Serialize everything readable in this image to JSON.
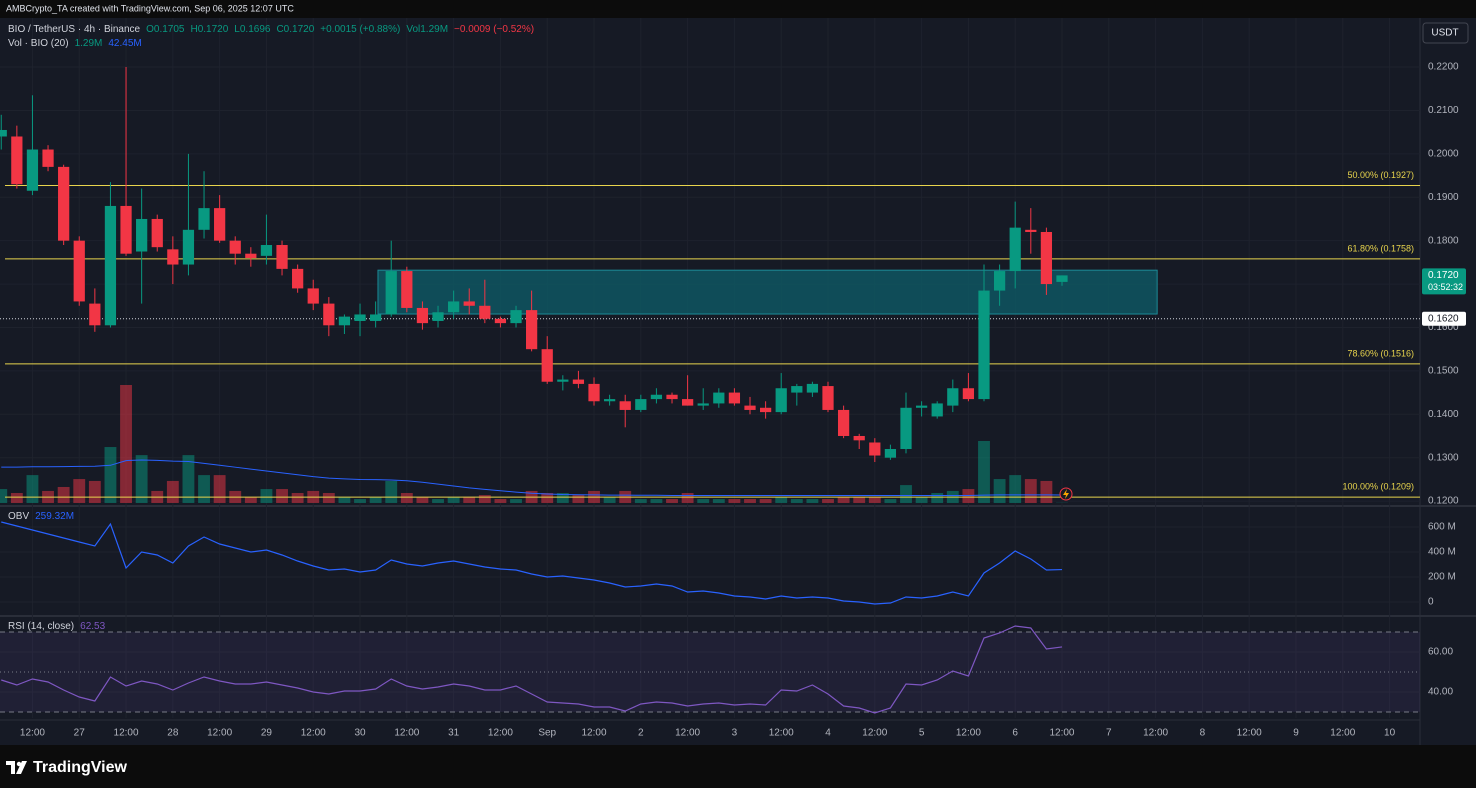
{
  "header": {
    "attribution": "AMBCrypto_TA created with TradingView.com, Sep 06, 2025 12:07 UTC",
    "symbol": "BIO / TetherUS · 4h · Binance",
    "ohlc": [
      "O0.1705",
      "H0.1720",
      "L0.1696",
      "C0.1720",
      "+0.0015 (+0.88%)"
    ],
    "vol_text": "Vol1.29M",
    "vol_change": "−0.0009 (−0.52%)",
    "currency": "USDT"
  },
  "footer": {
    "brand": "TradingView"
  },
  "chart_data": [
    {
      "type": "candlestick",
      "up_color": "#089981",
      "down_color": "#f23645",
      "grid": true,
      "ylim": [
        0.1191,
        0.2313
      ],
      "yticks": [
        {
          "value": 0.22,
          "label": "0.2200"
        },
        {
          "value": 0.21,
          "label": "0.2100"
        },
        {
          "value": 0.2,
          "label": "0.2000"
        },
        {
          "value": 0.19,
          "label": "0.1900"
        },
        {
          "value": 0.18,
          "label": "0.1800"
        },
        {
          "value": 0.17,
          "label": "0.1700"
        },
        {
          "value": 0.16,
          "label": "0.1600"
        },
        {
          "value": 0.15,
          "label": "0.1500"
        },
        {
          "value": 0.14,
          "label": "0.1400"
        },
        {
          "value": 0.13,
          "label": "0.1300"
        },
        {
          "value": 0.12,
          "label": "0.1200"
        }
      ],
      "xlim": [
        -0.08,
        90.95
      ],
      "xticks": [
        {
          "value": 2,
          "label": "12:00"
        },
        {
          "value": 5,
          "label": "27"
        },
        {
          "value": 8,
          "label": "12:00"
        },
        {
          "value": 11,
          "label": "28"
        },
        {
          "value": 14,
          "label": "12:00"
        },
        {
          "value": 17,
          "label": "29"
        },
        {
          "value": 20,
          "label": "12:00"
        },
        {
          "value": 23,
          "label": "30"
        },
        {
          "value": 26,
          "label": "12:00"
        },
        {
          "value": 29,
          "label": "31"
        },
        {
          "value": 32,
          "label": "12:00"
        },
        {
          "value": 35,
          "label": "Sep"
        },
        {
          "value": 38,
          "label": "12:00"
        },
        {
          "value": 41,
          "label": "2"
        },
        {
          "value": 44,
          "label": "12:00"
        },
        {
          "value": 47,
          "label": "3"
        },
        {
          "value": 50,
          "label": "12:00"
        },
        {
          "value": 53,
          "label": "4"
        },
        {
          "value": 56,
          "label": "12:00"
        },
        {
          "value": 59,
          "label": "5"
        },
        {
          "value": 62,
          "label": "12:00"
        },
        {
          "value": 65,
          "label": "6"
        },
        {
          "value": 68,
          "label": "12:00"
        },
        {
          "value": 71,
          "label": "7"
        },
        {
          "value": 74,
          "label": "12:00"
        },
        {
          "value": 77,
          "label": "8"
        },
        {
          "value": 80,
          "label": "12:00"
        },
        {
          "value": 83,
          "label": "9"
        },
        {
          "value": 86,
          "label": "12:00"
        },
        {
          "value": 89,
          "label": "10"
        }
      ],
      "open": [
        0.204,
        0.204,
        0.1915,
        0.201,
        0.197,
        0.18,
        0.1655,
        0.1605,
        0.188,
        0.1775,
        0.185,
        0.178,
        0.1745,
        0.1825,
        0.1875,
        0.18,
        0.177,
        0.1765,
        0.179,
        0.1735,
        0.169,
        0.1655,
        0.1605,
        0.1615,
        0.1615,
        0.163,
        0.173,
        0.1645,
        0.1615,
        0.1635,
        0.166,
        0.165,
        0.162,
        0.161,
        0.164,
        0.155,
        0.1475,
        0.148,
        0.147,
        0.143,
        0.143,
        0.141,
        0.1435,
        0.1445,
        0.1435,
        0.142,
        0.1425,
        0.145,
        0.142,
        0.1415,
        0.1405,
        0.145,
        0.145,
        0.1465,
        0.141,
        0.135,
        0.1335,
        0.13,
        0.132,
        0.1415,
        0.1395,
        0.142,
        0.146,
        0.1435,
        0.1685,
        0.173,
        0.1825,
        0.182,
        0.1705
      ],
      "high": [
        0.209,
        0.2065,
        0.2135,
        0.202,
        0.1975,
        0.181,
        0.169,
        0.1935,
        0.22,
        0.192,
        0.186,
        0.181,
        0.2,
        0.196,
        0.1905,
        0.181,
        0.1785,
        0.186,
        0.18,
        0.1745,
        0.171,
        0.167,
        0.163,
        0.1655,
        0.166,
        0.18,
        0.174,
        0.166,
        0.165,
        0.1685,
        0.169,
        0.171,
        0.1625,
        0.165,
        0.1685,
        0.158,
        0.149,
        0.15,
        0.1485,
        0.1445,
        0.1445,
        0.1445,
        0.146,
        0.145,
        0.149,
        0.146,
        0.146,
        0.146,
        0.144,
        0.143,
        0.1495,
        0.147,
        0.1475,
        0.1475,
        0.142,
        0.1355,
        0.1345,
        0.133,
        0.145,
        0.143,
        0.143,
        0.148,
        0.1495,
        0.1745,
        0.1745,
        0.189,
        0.1875,
        0.183,
        0.172
      ],
      "low": [
        0.201,
        0.192,
        0.1905,
        0.196,
        0.179,
        0.165,
        0.159,
        0.16,
        0.1765,
        0.1655,
        0.1775,
        0.17,
        0.172,
        0.1805,
        0.1795,
        0.1745,
        0.174,
        0.1745,
        0.172,
        0.168,
        0.164,
        0.158,
        0.1585,
        0.158,
        0.16,
        0.1625,
        0.1635,
        0.1595,
        0.16,
        0.162,
        0.163,
        0.161,
        0.16,
        0.16,
        0.1545,
        0.147,
        0.1455,
        0.146,
        0.142,
        0.142,
        0.137,
        0.1405,
        0.1425,
        0.1425,
        0.142,
        0.141,
        0.1415,
        0.142,
        0.14,
        0.139,
        0.14,
        0.142,
        0.144,
        0.1405,
        0.1345,
        0.132,
        0.129,
        0.1295,
        0.131,
        0.1395,
        0.139,
        0.1405,
        0.143,
        0.143,
        0.165,
        0.169,
        0.177,
        0.1675,
        0.1696
      ],
      "close": [
        0.2055,
        0.193,
        0.201,
        0.197,
        0.18,
        0.166,
        0.1605,
        0.188,
        0.177,
        0.185,
        0.1785,
        0.1745,
        0.1825,
        0.1875,
        0.18,
        0.177,
        0.176,
        0.179,
        0.1735,
        0.169,
        0.1655,
        0.1605,
        0.1625,
        0.163,
        0.163,
        0.173,
        0.1645,
        0.161,
        0.1635,
        0.166,
        0.165,
        0.162,
        0.161,
        0.164,
        0.155,
        0.1475,
        0.148,
        0.147,
        0.143,
        0.1435,
        0.141,
        0.1435,
        0.1445,
        0.1435,
        0.142,
        0.1425,
        0.145,
        0.1425,
        0.141,
        0.1405,
        0.146,
        0.1465,
        0.147,
        0.141,
        0.135,
        0.134,
        0.1305,
        0.132,
        0.1415,
        0.142,
        0.1425,
        0.146,
        0.1435,
        0.1685,
        0.173,
        0.183,
        0.182,
        0.17,
        0.172
      ],
      "volume": {
        "title": "Vol · BIO (20)",
        "value_label": "1.29M",
        "ma_label": "42.45M",
        "ma_color": "#2962ff",
        "values": [
          74,
          53,
          148,
          64,
          85,
          127,
          117,
          297,
          626,
          254,
          64,
          117,
          254,
          148,
          148,
          64,
          32,
          74,
          74,
          53,
          64,
          53,
          32,
          21,
          32,
          117,
          53,
          32,
          21,
          32,
          32,
          42,
          21,
          21,
          64,
          53,
          53,
          42,
          64,
          32,
          64,
          21,
          21,
          21,
          53,
          21,
          21,
          21,
          21,
          21,
          32,
          21,
          21,
          21,
          32,
          32,
          32,
          21,
          95,
          32,
          53,
          64,
          74,
          329,
          127,
          148,
          127,
          117,
          1.29
        ],
        "ma": [
          190,
          190,
          192,
          192,
          193,
          194,
          195,
          200,
          225,
          228,
          226,
          222,
          220,
          210,
          200,
          190,
          180,
          170,
          160,
          150,
          140,
          132,
          128,
          125,
          124,
          122,
          118,
          110,
          100,
          90,
          80,
          72,
          65,
          58,
          52,
          48,
          45,
          44,
          43,
          42,
          42,
          41,
          41,
          40,
          40,
          40,
          40,
          40,
          40,
          40,
          40,
          40,
          40,
          40,
          40,
          40,
          40,
          40,
          40,
          40,
          40,
          40,
          40,
          42,
          43,
          43,
          43,
          43,
          42.45
        ]
      },
      "fib_color": "#e8d44d",
      "fib_levels": [
        {
          "value": 0.1927,
          "label": "50.00% (0.1927)"
        },
        {
          "value": 0.1758,
          "label": "61.80% (0.1758)"
        },
        {
          "value": 0.1516,
          "label": "78.60% (0.1516)"
        },
        {
          "value": 0.1209,
          "label": "100.00% (0.1209)"
        }
      ],
      "zone": {
        "x": [
          24.15,
          74.1
        ],
        "y": [
          0.1631,
          0.1732
        ],
        "color": "#0e5662"
      },
      "price_line": {
        "value": 0.162,
        "label": "0.1620"
      },
      "last_price": {
        "value": 0.172,
        "label": "0.1720"
      },
      "countdown": "03:52:32"
    },
    {
      "type": "line",
      "title": "OBV",
      "last_label": "259.32M",
      "color": "#2962ff",
      "grid": true,
      "ylim": [
        -104,
        760
      ],
      "yticks": [
        {
          "value": 600,
          "label": "600 M"
        },
        {
          "value": 400,
          "label": "400 M"
        },
        {
          "value": 200,
          "label": "200 M"
        },
        0
      ],
      "values": [
        640,
        608,
        576,
        544,
        512,
        480,
        448,
        624,
        272,
        400,
        376,
        312,
        448,
        520,
        464,
        432,
        400,
        416,
        376,
        328,
        288,
        256,
        264,
        240,
        256,
        336,
        304,
        288,
        312,
        328,
        304,
        280,
        264,
        256,
        224,
        200,
        208,
        192,
        176,
        152,
        120,
        128,
        144,
        128,
        80,
        88,
        72,
        48,
        40,
        24,
        48,
        32,
        40,
        32,
        8,
        0,
        -16,
        -8,
        40,
        32,
        48,
        80,
        48,
        232,
        312,
        408,
        344,
        256,
        259.32
      ]
    },
    {
      "type": "line",
      "title": "RSI (14, close)",
      "last_label": "62.53",
      "color": "#7e57c2",
      "grid": true,
      "ylim": [
        27,
        77.5
      ],
      "yticks": [
        {
          "value": 60,
          "label": "60.00"
        },
        {
          "value": 40,
          "label": "40.00"
        }
      ],
      "levels": [
        70,
        50,
        30
      ],
      "values": [
        46,
        43.5,
        46.5,
        45,
        41,
        37.5,
        35.5,
        47.5,
        43,
        45.5,
        44,
        41,
        44.5,
        47.5,
        45.5,
        44,
        44,
        45,
        43.5,
        42,
        40,
        39,
        40.5,
        40.5,
        41.5,
        46.5,
        43,
        41.5,
        42.5,
        44,
        43,
        41,
        41,
        43,
        39,
        35,
        34.5,
        34,
        32.5,
        32.5,
        30.5,
        34,
        35,
        34.5,
        33,
        34,
        34.5,
        33.5,
        34,
        33.5,
        41,
        40.5,
        43.5,
        39,
        33,
        32,
        29.5,
        32,
        44,
        43.5,
        46,
        50.5,
        48,
        67,
        69.5,
        73,
        72,
        61.5,
        62.53
      ]
    }
  ]
}
